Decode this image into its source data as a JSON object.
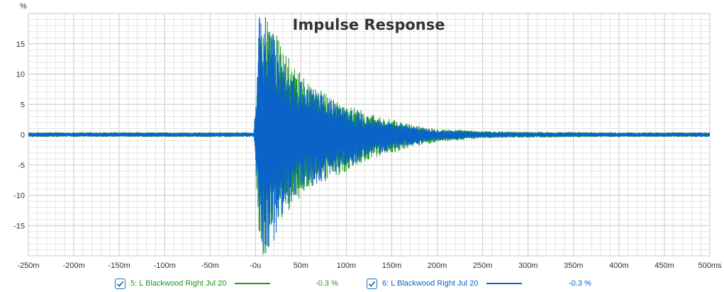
{
  "chart_data": {
    "type": "line",
    "title": "Impulse Response",
    "y_unit": "%",
    "x_unit_label": "ms",
    "xlim": [
      -0.25,
      0.5
    ],
    "ylim": [
      -20,
      20
    ],
    "x_ticks": [
      {
        "v": -0.25,
        "label": "-250m"
      },
      {
        "v": -0.2,
        "label": "-200m"
      },
      {
        "v": -0.15,
        "label": "-150m"
      },
      {
        "v": -0.1,
        "label": "-100m"
      },
      {
        "v": -0.05,
        "label": "-50m"
      },
      {
        "v": 0,
        "label": "-0u"
      },
      {
        "v": 0.05,
        "label": "50m"
      },
      {
        "v": 0.1,
        "label": "100m"
      },
      {
        "v": 0.15,
        "label": "150m"
      },
      {
        "v": 0.2,
        "label": "200m"
      },
      {
        "v": 0.25,
        "label": "250m"
      },
      {
        "v": 0.3,
        "label": "300m"
      },
      {
        "v": 0.35,
        "label": "350m"
      },
      {
        "v": 0.4,
        "label": "400m"
      },
      {
        "v": 0.45,
        "label": "450m"
      },
      {
        "v": 0.5,
        "label": "500ms"
      }
    ],
    "y_ticks": [
      {
        "v": 15,
        "label": "15"
      },
      {
        "v": 10,
        "label": "10"
      },
      {
        "v": 5,
        "label": "5"
      },
      {
        "v": 0,
        "label": "0"
      },
      {
        "v": -5,
        "label": "-5"
      },
      {
        "v": -10,
        "label": "-10"
      },
      {
        "v": -15,
        "label": "-15"
      }
    ],
    "grid": true,
    "series": [
      {
        "name": "5: L Blackwood Right Jul 20",
        "color": "#1a9a1a",
        "value_label": "-0.3 %",
        "checked": true,
        "envelope": {
          "x": [
            -0.25,
            -0.002,
            0.0,
            0.004,
            0.01,
            0.02,
            0.03,
            0.05,
            0.075,
            0.1,
            0.125,
            0.15,
            0.175,
            0.2,
            0.25,
            0.3,
            0.4,
            0.5
          ],
          "upper": [
            0.4,
            0.4,
            5,
            20,
            20,
            18,
            14,
            10,
            7,
            5,
            3.5,
            2.5,
            1.6,
            1.0,
            0.6,
            0.5,
            0.4,
            0.4
          ],
          "lower": [
            -0.4,
            -0.4,
            -5.5,
            -20,
            -20,
            -17,
            -14,
            -10,
            -8,
            -6,
            -4,
            -3,
            -2,
            -1.2,
            -0.6,
            -0.5,
            -0.4,
            -0.4
          ]
        }
      },
      {
        "name": "6: L Blackwood Right Jul 20",
        "color": "#0a64c8",
        "value_label": "-0.3 %",
        "checked": true,
        "envelope": {
          "x": [
            -0.25,
            -0.002,
            0.0,
            0.004,
            0.01,
            0.02,
            0.03,
            0.05,
            0.075,
            0.1,
            0.125,
            0.15,
            0.175,
            0.2,
            0.25,
            0.3,
            0.4,
            0.5
          ],
          "upper": [
            0.35,
            0.35,
            4,
            20,
            20,
            17,
            13,
            9,
            6.5,
            4.5,
            3,
            2,
            1.3,
            0.8,
            0.5,
            0.4,
            0.35,
            0.35
          ],
          "lower": [
            -0.35,
            -0.35,
            -5,
            -20,
            -20,
            -18,
            -13,
            -9.5,
            -7.5,
            -5.5,
            -3.5,
            -2.5,
            -1.6,
            -1,
            -0.5,
            -0.4,
            -0.35,
            -0.35
          ]
        }
      }
    ]
  }
}
